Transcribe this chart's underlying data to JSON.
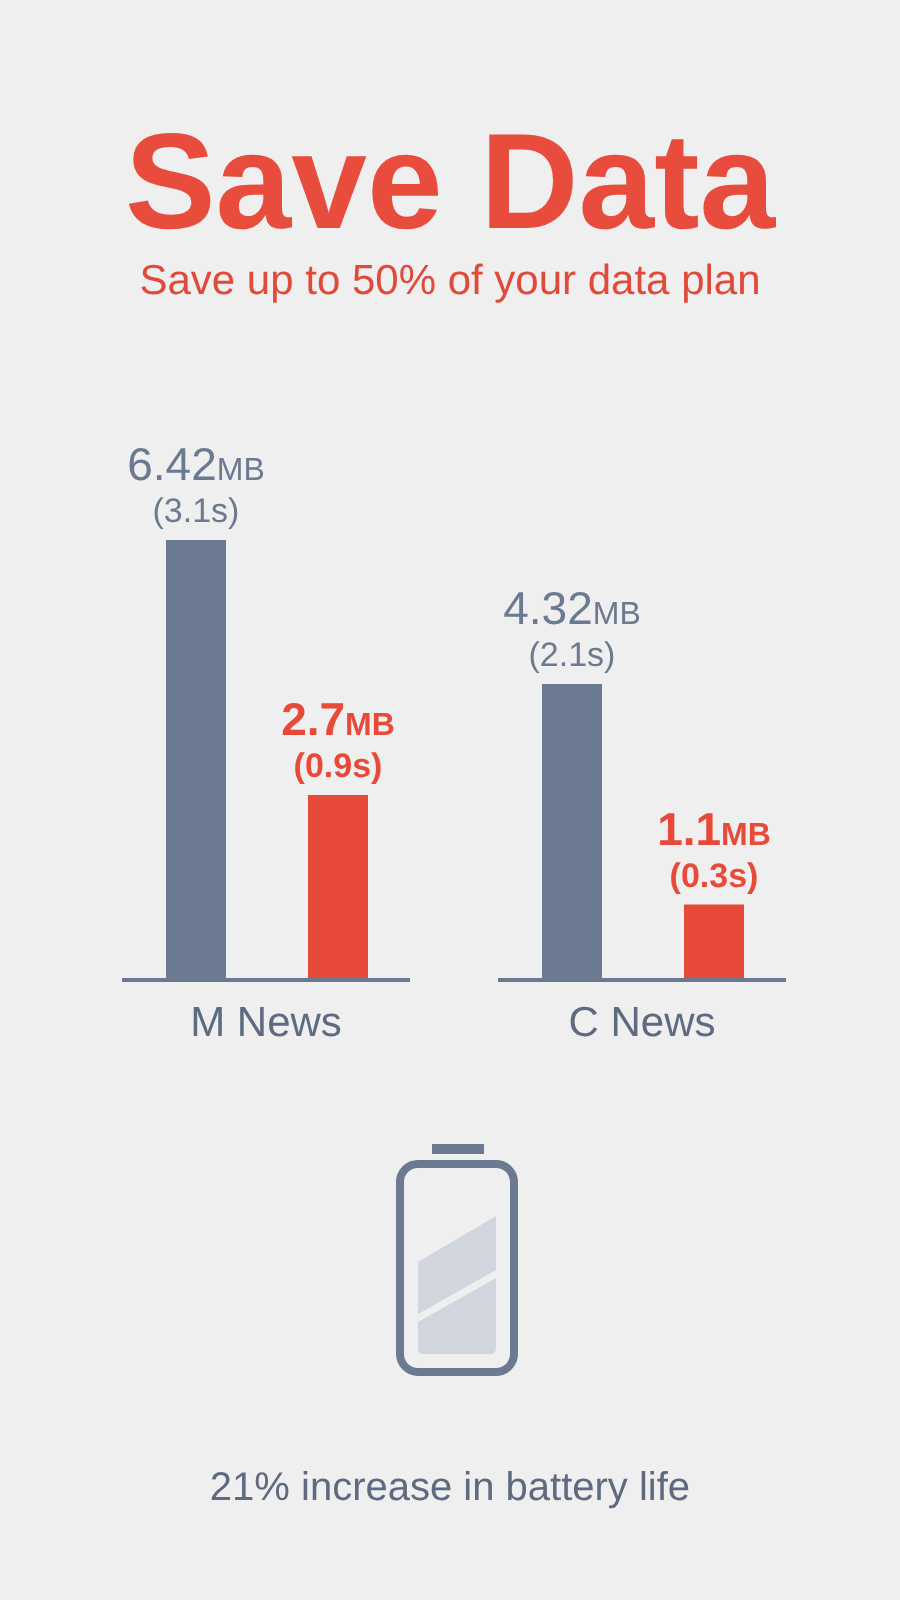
{
  "chart_data": {
    "type": "bar",
    "title": "Save Data",
    "subtitle": "Save up to 50% of your data plan",
    "categories": [
      "M News",
      "C News"
    ],
    "series": [
      {
        "color": "#6b7a91",
        "values": [
          6.42,
          4.32
        ],
        "value_labels": [
          "6.42MB (3.1s)",
          "4.32MB (2.1s)"
        ]
      },
      {
        "color": "#e84a3a",
        "values": [
          2.7,
          1.1
        ],
        "value_labels": [
          "2.7MB (0.9s)",
          "1.1MB (0.3s)"
        ]
      }
    ],
    "annotations": [
      "21% increase in battery life"
    ]
  }
}
